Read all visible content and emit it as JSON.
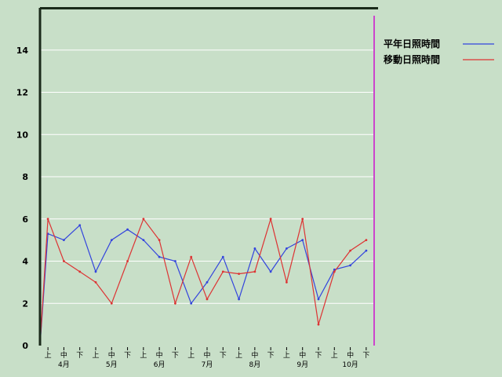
{
  "chart_data": {
    "type": "line",
    "title": "",
    "xlabel": "",
    "ylabel": "",
    "ylim": [
      0,
      16
    ],
    "yticks": [
      0,
      2,
      4,
      6,
      8,
      10,
      12,
      14
    ],
    "grid": true,
    "legend_position": "top-right",
    "x_minor_labels": [
      "上",
      "中",
      "下"
    ],
    "months": [
      "4月",
      "5月",
      "6月",
      "7月",
      "8月",
      "9月",
      "10月"
    ],
    "x": [
      1,
      2,
      3,
      4,
      5,
      6,
      7,
      8,
      9,
      10,
      11,
      12,
      13,
      14,
      15,
      16,
      17,
      18,
      19,
      20,
      21
    ],
    "series": [
      {
        "name": "平年日照時間",
        "color": "#3344dd",
        "values": [
          5.3,
          5.0,
          5.7,
          3.5,
          5.0,
          5.5,
          5.0,
          4.2,
          4.0,
          2.0,
          3.0,
          4.2,
          2.2,
          4.6,
          3.5,
          4.6,
          5.0,
          2.2,
          3.6,
          3.8,
          4.5
        ]
      },
      {
        "name": "移動日照時間",
        "color": "#dd3333",
        "values": [
          6.0,
          4.0,
          3.5,
          3.0,
          2.0,
          4.0,
          6.0,
          5.0,
          2.0,
          4.2,
          2.2,
          3.5,
          3.4,
          3.5,
          6.0,
          3.0,
          6.0,
          1.0,
          3.5,
          4.5,
          5.0
        ]
      }
    ],
    "colors": {
      "background": "#c8dfc8",
      "gridline": "#ffffff",
      "axis": "#000000",
      "current_marker": "#cc44cc"
    }
  }
}
